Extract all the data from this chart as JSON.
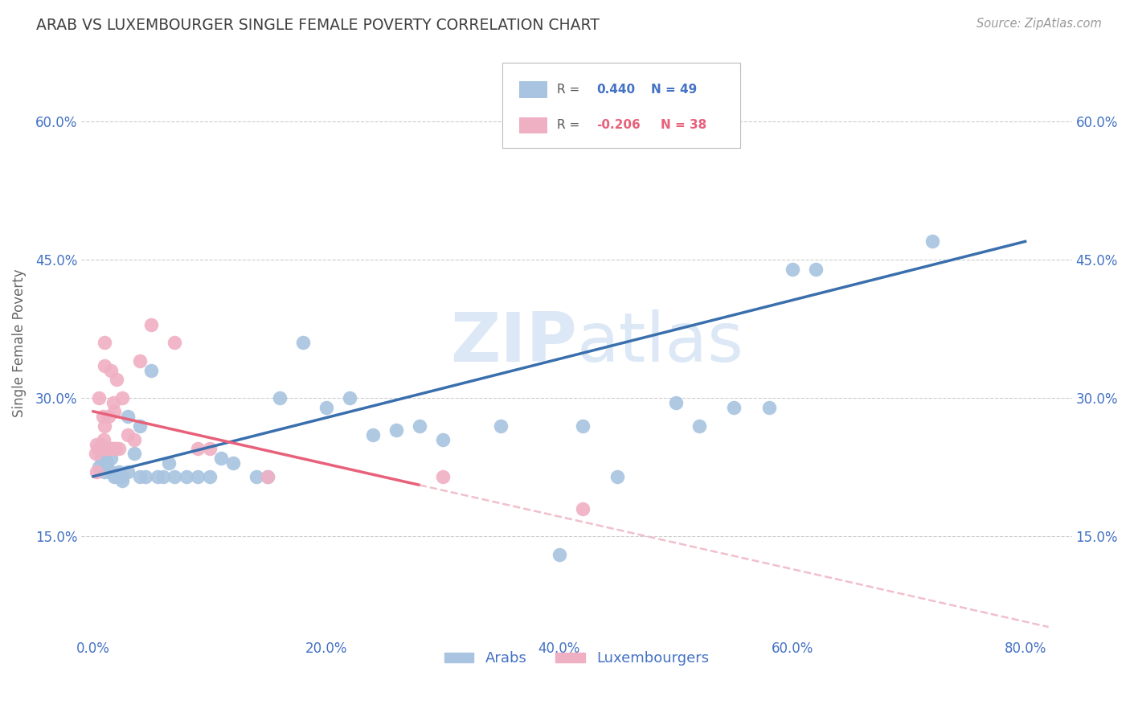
{
  "title": "ARAB VS LUXEMBOURGER SINGLE FEMALE POVERTY CORRELATION CHART",
  "source": "Source: ZipAtlas.com",
  "ylabel": "Single Female Poverty",
  "xlabel_ticks": [
    "0.0%",
    "20.0%",
    "40.0%",
    "60.0%",
    "80.0%"
  ],
  "xlabel_vals": [
    0.0,
    0.2,
    0.4,
    0.6,
    0.8
  ],
  "ylabel_ticks": [
    "15.0%",
    "30.0%",
    "45.0%",
    "60.0%"
  ],
  "ylabel_vals": [
    0.15,
    0.3,
    0.45,
    0.6
  ],
  "ylim": [
    0.04,
    0.68
  ],
  "xlim": [
    -0.01,
    0.84
  ],
  "arab_R": 0.44,
  "arab_N": 49,
  "lux_R": -0.206,
  "lux_N": 38,
  "arab_color": "#a8c4e0",
  "lux_color": "#f0b0c4",
  "arab_line_color": "#3a6fad",
  "lux_line_color": "#e8607a",
  "lux_dash_color": "#f0c0cc",
  "arab_x": [
    0.005,
    0.007,
    0.01,
    0.01,
    0.012,
    0.015,
    0.015,
    0.018,
    0.02,
    0.022,
    0.025,
    0.025,
    0.03,
    0.03,
    0.035,
    0.04,
    0.04,
    0.045,
    0.05,
    0.055,
    0.06,
    0.065,
    0.07,
    0.08,
    0.09,
    0.1,
    0.11,
    0.12,
    0.14,
    0.15,
    0.16,
    0.18,
    0.2,
    0.22,
    0.24,
    0.26,
    0.28,
    0.3,
    0.35,
    0.4,
    0.42,
    0.45,
    0.5,
    0.52,
    0.55,
    0.58,
    0.6,
    0.62,
    0.72
  ],
  "arab_y": [
    0.225,
    0.235,
    0.22,
    0.24,
    0.23,
    0.22,
    0.235,
    0.215,
    0.215,
    0.22,
    0.21,
    0.215,
    0.22,
    0.28,
    0.24,
    0.27,
    0.215,
    0.215,
    0.33,
    0.215,
    0.215,
    0.23,
    0.215,
    0.215,
    0.215,
    0.215,
    0.235,
    0.23,
    0.215,
    0.215,
    0.3,
    0.36,
    0.29,
    0.3,
    0.26,
    0.265,
    0.27,
    0.255,
    0.27,
    0.13,
    0.27,
    0.215,
    0.295,
    0.27,
    0.29,
    0.29,
    0.44,
    0.44,
    0.47
  ],
  "lux_x": [
    0.002,
    0.003,
    0.003,
    0.004,
    0.005,
    0.005,
    0.006,
    0.007,
    0.008,
    0.008,
    0.009,
    0.009,
    0.01,
    0.01,
    0.01,
    0.01,
    0.012,
    0.013,
    0.015,
    0.015,
    0.016,
    0.017,
    0.018,
    0.018,
    0.019,
    0.02,
    0.022,
    0.025,
    0.03,
    0.035,
    0.04,
    0.05,
    0.07,
    0.09,
    0.1,
    0.15,
    0.3,
    0.42
  ],
  "lux_y": [
    0.24,
    0.25,
    0.22,
    0.245,
    0.3,
    0.245,
    0.245,
    0.25,
    0.245,
    0.28,
    0.245,
    0.255,
    0.245,
    0.27,
    0.36,
    0.335,
    0.245,
    0.28,
    0.33,
    0.245,
    0.245,
    0.295,
    0.245,
    0.285,
    0.245,
    0.32,
    0.245,
    0.3,
    0.26,
    0.255,
    0.34,
    0.38,
    0.36,
    0.245,
    0.245,
    0.215,
    0.215,
    0.18
  ],
  "grid_color": "#cccccc",
  "background_color": "#ffffff",
  "title_color": "#404040",
  "axis_label_color": "#666666",
  "tick_color": "#4472c4",
  "source_color": "#999999",
  "legend_text_color_blue": "#4472c4",
  "legend_text_color_pink": "#e8607a",
  "watermark_color": "#dce8f5",
  "watermark_zip": "ZIP",
  "watermark_atlas": "atlas"
}
